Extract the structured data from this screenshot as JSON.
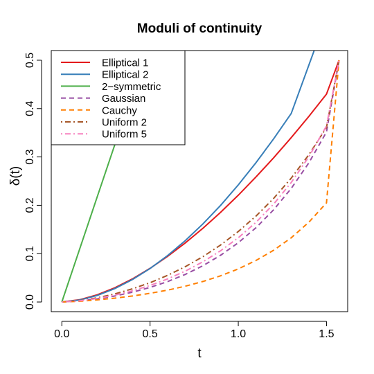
{
  "chart_data": {
    "type": "line",
    "title": "Moduli of continuity",
    "xlabel": "t",
    "ylabel": "δ(t)",
    "xlim": [
      -0.06,
      1.62
    ],
    "ylim": [
      -0.02,
      0.52
    ],
    "x_ticks": [
      0.0,
      0.5,
      1.0,
      1.5
    ],
    "x_tick_labels": [
      "0.0",
      "0.5",
      "1.0",
      "1.5"
    ],
    "y_ticks": [
      0.0,
      0.1,
      0.2,
      0.3,
      0.4,
      0.5
    ],
    "y_tick_labels": [
      "0.0",
      "0.1",
      "0.2",
      "0.3",
      "0.4",
      "0.5"
    ],
    "grid": false,
    "legend_position": "top-left",
    "series": [
      {
        "name": "Elliptical 1",
        "color": "#e41a1c",
        "dash": "solid",
        "x": [
          0,
          0.1,
          0.2,
          0.3,
          0.4,
          0.5,
          0.6,
          0.7,
          0.8,
          0.9,
          1.0,
          1.1,
          1.2,
          1.3,
          1.4,
          1.5,
          1.571
        ],
        "y": [
          0,
          0.0046,
          0.0148,
          0.0294,
          0.0478,
          0.0696,
          0.0945,
          0.1222,
          0.1526,
          0.1855,
          0.2208,
          0.2584,
          0.2981,
          0.34,
          0.3839,
          0.4299,
          0.5
        ]
      },
      {
        "name": "Elliptical 2",
        "color": "#377eb8",
        "dash": "solid",
        "x": [
          0,
          0.1,
          0.2,
          0.3,
          0.4,
          0.5,
          0.6,
          0.7,
          0.8,
          0.9,
          1.0,
          1.1,
          1.2,
          1.3,
          1.43
        ],
        "y": [
          0,
          0.0039,
          0.0134,
          0.0277,
          0.0464,
          0.0693,
          0.0961,
          0.127,
          0.1616,
          0.2,
          0.2421,
          0.2879,
          0.3372,
          0.39,
          0.52
        ]
      },
      {
        "name": "2−symmetric",
        "color": "#4daf4a",
        "dash": "solid",
        "x": [
          0,
          0.2,
          0.4,
          0.48
        ],
        "y": [
          0,
          0.2167,
          0.4333,
          0.52
        ]
      },
      {
        "name": "Gaussian",
        "color": "#984ea3",
        "dash": "dashed",
        "x": [
          0,
          0.1,
          0.2,
          0.3,
          0.4,
          0.5,
          0.6,
          0.7,
          0.8,
          0.9,
          1.0,
          1.1,
          1.2,
          1.3,
          1.4,
          1.5,
          1.571
        ],
        "y": [
          0,
          0.0021,
          0.0064,
          0.0124,
          0.0202,
          0.0301,
          0.0423,
          0.0571,
          0.0751,
          0.0967,
          0.1225,
          0.1535,
          0.1905,
          0.2348,
          0.2879,
          0.3515,
          0.5
        ]
      },
      {
        "name": "Cauchy",
        "color": "#ff7f00",
        "dash": "dashed",
        "x": [
          0,
          0.1,
          0.2,
          0.3,
          0.4,
          0.5,
          0.6,
          0.7,
          0.8,
          0.9,
          1.0,
          1.1,
          1.2,
          1.3,
          1.4,
          1.5,
          1.571
        ],
        "y": [
          0,
          0.0015,
          0.0043,
          0.0079,
          0.0124,
          0.0179,
          0.0246,
          0.0327,
          0.0424,
          0.0542,
          0.0684,
          0.0858,
          0.1069,
          0.1329,
          0.165,
          0.205,
          0.5
        ]
      },
      {
        "name": "Uniform 2",
        "color": "#a65628",
        "dash": "dotdash",
        "x": [
          0,
          0.1,
          0.2,
          0.3,
          0.4,
          0.5,
          0.6,
          0.7,
          0.8,
          0.9,
          1.0,
          1.1,
          1.2,
          1.3,
          1.4,
          1.5,
          1.571
        ],
        "y": [
          0,
          0.0028,
          0.0086,
          0.0167,
          0.0272,
          0.0399,
          0.0552,
          0.0731,
          0.0939,
          0.118,
          0.1457,
          0.1775,
          0.2141,
          0.2562,
          0.3047,
          0.3609,
          0.5
        ]
      },
      {
        "name": "Uniform 5",
        "color": "#f781bf",
        "dash": "dotdash",
        "x": [
          0,
          0.1,
          0.2,
          0.3,
          0.4,
          0.5,
          0.6,
          0.7,
          0.8,
          0.9,
          1.0,
          1.1,
          1.2,
          1.3,
          1.4,
          1.5,
          1.571
        ],
        "y": [
          0,
          0.0023,
          0.0072,
          0.0141,
          0.0231,
          0.0343,
          0.0478,
          0.064,
          0.0833,
          0.106,
          0.1329,
          0.1647,
          0.2023,
          0.2471,
          0.3004,
          0.3641,
          0.5
        ]
      }
    ]
  }
}
